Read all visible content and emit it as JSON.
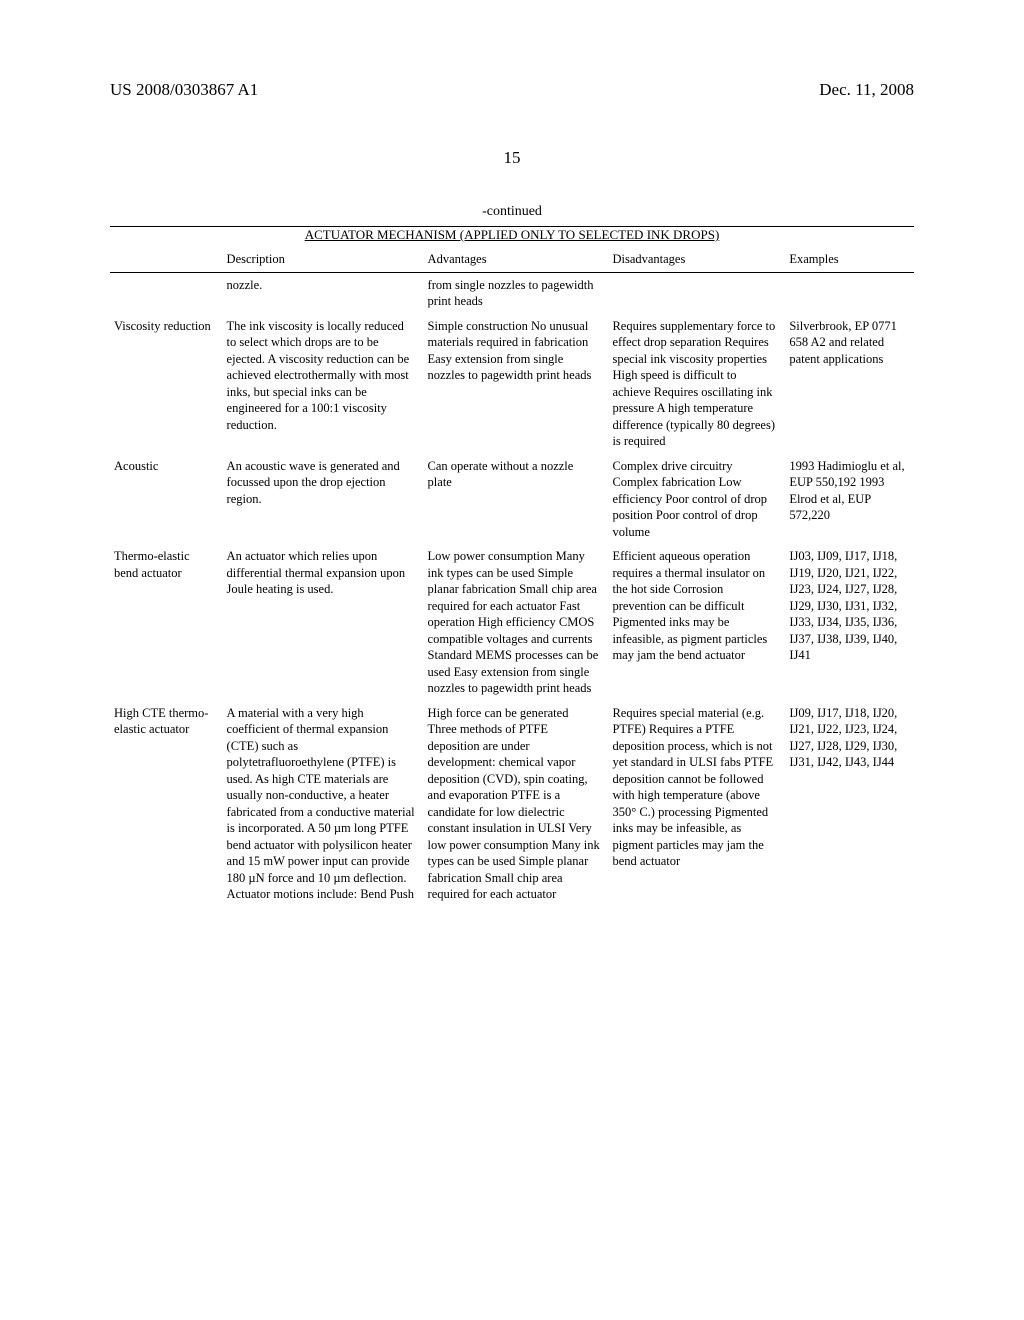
{
  "header": {
    "pub_no": "US 2008/0303867 A1",
    "date": "Dec. 11, 2008"
  },
  "page_number": "15",
  "continued": "-continued",
  "table_title": "ACTUATOR MECHANISM (APPLIED ONLY TO SELECTED INK DROPS)",
  "columns": [
    "",
    "Description",
    "Advantages",
    "Disadvantages",
    "Examples"
  ],
  "rows": [
    {
      "name": "",
      "description": "nozzle.",
      "advantages": "from single nozzles to pagewidth print heads",
      "disadvantages": "",
      "examples": ""
    },
    {
      "name": "Viscosity reduction",
      "description": "The ink viscosity is locally reduced to select which drops are to be ejected. A viscosity reduction can be achieved electrothermally with most inks, but special inks can be engineered for a 100:1 viscosity reduction.",
      "advantages": "Simple construction\nNo unusual materials required in fabrication\nEasy extension from single nozzles to pagewidth print heads",
      "disadvantages": "Requires supplementary force to effect drop separation\nRequires special ink viscosity properties\nHigh speed is difficult to achieve\nRequires oscillating ink pressure\nA high temperature difference (typically 80 degrees) is required",
      "examples": "Silverbrook, EP 0771 658 A2 and related patent applications"
    },
    {
      "name": "Acoustic",
      "description": "An acoustic wave is generated and focussed upon the drop ejection region.",
      "advantages": "Can operate without a nozzle plate",
      "disadvantages": "Complex drive circuitry\nComplex fabrication\nLow efficiency\nPoor control of drop position\nPoor control of drop volume",
      "examples": "1993 Hadimioglu et al, EUP 550,192\n1993 Elrod et al, EUP 572,220"
    },
    {
      "name": "Thermo-elastic bend actuator",
      "description": "An actuator which relies upon differential thermal expansion upon Joule heating is used.",
      "advantages": "Low power consumption\nMany ink types can be used\nSimple planar fabrication\nSmall chip area required for each actuator\nFast operation\nHigh efficiency\nCMOS compatible voltages and currents\nStandard MEMS processes can be used\nEasy extension from single nozzles to pagewidth print heads",
      "disadvantages": "Efficient aqueous operation requires a thermal insulator on the hot side\nCorrosion prevention can be difficult\nPigmented inks may be infeasible, as pigment particles may jam the bend actuator",
      "examples": "IJ03, IJ09, IJ17, IJ18, IJ19, IJ20, IJ21, IJ22, IJ23, IJ24, IJ27, IJ28, IJ29, IJ30, IJ31, IJ32, IJ33, IJ34, IJ35, IJ36, IJ37, IJ38, IJ39, IJ40, IJ41"
    },
    {
      "name": "High CTE thermo-elastic actuator",
      "description": "A material with a very high coefficient of thermal expansion (CTE) such as polytetrafluoroethylene (PTFE) is used. As high CTE materials are usually non-conductive, a heater fabricated from a conductive material is incorporated. A 50 µm long PTFE bend actuator with polysilicon heater and 15 mW power input can provide 180 µN force and 10 µm deflection. Actuator motions include:\nBend\nPush",
      "advantages": "High force can be generated\nThree methods of PTFE deposition are under development: chemical vapor deposition (CVD), spin coating, and evaporation\nPTFE is a candidate for low dielectric constant insulation in ULSI\nVery low power consumption\nMany ink types can be used\nSimple planar fabrication\nSmall chip area required for each actuator",
      "disadvantages": "Requires special material (e.g. PTFE)\nRequires a PTFE deposition process, which is not yet standard in ULSI fabs\nPTFE deposition cannot be followed with high temperature (above 350° C.) processing\nPigmented inks may be infeasible, as pigment particles may jam the bend actuator",
      "examples": "IJ09, IJ17, IJ18, IJ20, IJ21, IJ22, IJ23, IJ24, IJ27, IJ28, IJ29, IJ30, IJ31, IJ42, IJ43, IJ44"
    }
  ]
}
